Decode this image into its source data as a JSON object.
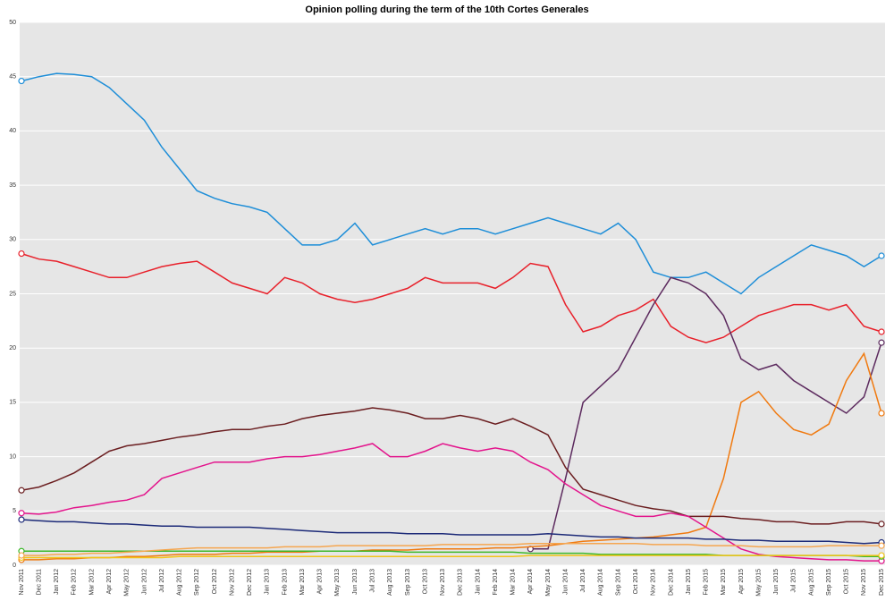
{
  "chart_data": {
    "type": "line",
    "title": "Opinion polling during the term of the 10th Cortes Generales",
    "categories": [
      "Nov 2011",
      "Dec 2011",
      "Jan 2012",
      "Feb 2012",
      "Mar 2012",
      "Apr 2012",
      "May 2012",
      "Jun 2012",
      "Jul 2012",
      "Aug 2012",
      "Sep 2012",
      "Oct 2012",
      "Nov 2012",
      "Dec 2012",
      "Jan 2013",
      "Feb 2013",
      "Mar 2013",
      "Apr 2013",
      "May 2013",
      "Jun 2013",
      "Jul 2013",
      "Aug 2013",
      "Sep 2013",
      "Oct 2013",
      "Nov 2013",
      "Dec 2013",
      "Jan 2014",
      "Feb 2014",
      "Mar 2014",
      "Apr 2014",
      "May 2014",
      "Jun 2014",
      "Jul 2014",
      "Aug 2014",
      "Sep 2014",
      "Oct 2014",
      "Nov 2014",
      "Dec 2014",
      "Jan 2015",
      "Feb 2015",
      "Mar 2015",
      "Apr 2015",
      "May 2015",
      "Jun 2015",
      "Jul 2015",
      "Aug 2015",
      "Sep 2015",
      "Oct 2015",
      "Nov 2015",
      "Dec 2015"
    ],
    "ylim": [
      0,
      50
    ],
    "yticks": [
      0,
      5,
      10,
      15,
      20,
      25,
      30,
      35,
      40,
      45,
      50
    ],
    "grid": true,
    "series": [
      {
        "color": "#1e8ed8",
        "values": [
          44.6,
          45,
          45.3,
          45.2,
          45,
          44,
          42.5,
          41,
          38.5,
          36.5,
          34.5,
          33.8,
          33.3,
          33,
          32.5,
          31,
          29.5,
          29.5,
          30,
          31.5,
          29.5,
          30,
          30.5,
          31,
          30.5,
          31,
          31,
          30.5,
          31,
          31.5,
          32,
          31.5,
          31,
          30.5,
          31.5,
          30,
          27,
          26.5,
          26.5,
          27,
          26,
          25,
          26.5,
          27.5,
          28.5,
          29.5,
          29,
          28.5,
          27.5,
          28.5
        ]
      },
      {
        "color": "#e8202a",
        "values": [
          28.7,
          28.2,
          28,
          27.5,
          27,
          26.5,
          26.5,
          27,
          27.5,
          27.8,
          28,
          27,
          26,
          25.5,
          25,
          26.5,
          26,
          25,
          24.5,
          24.2,
          24.5,
          25,
          25.5,
          26.5,
          26,
          26,
          26,
          25.5,
          26.5,
          27.8,
          27.5,
          24,
          21.5,
          22,
          23,
          23.5,
          24.5,
          22,
          21,
          20.5,
          21,
          22,
          23,
          23.5,
          24,
          24,
          23.5,
          24,
          22,
          21.5
        ]
      },
      {
        "color": "#5c2a5e",
        "values": [
          null,
          null,
          null,
          null,
          null,
          null,
          null,
          null,
          null,
          null,
          null,
          null,
          null,
          null,
          null,
          null,
          null,
          null,
          null,
          null,
          null,
          null,
          null,
          null,
          null,
          null,
          null,
          null,
          null,
          1.5,
          1.5,
          8,
          15,
          16.5,
          18,
          21,
          24,
          26.5,
          26,
          25,
          23,
          19,
          18,
          18.5,
          17,
          16,
          15,
          14,
          15.5,
          20.5
        ]
      },
      {
        "color": "#f07a10",
        "values": [
          0.5,
          0.5,
          0.6,
          0.6,
          0.7,
          0.7,
          0.8,
          0.8,
          0.9,
          1,
          1,
          1,
          1.1,
          1.1,
          1.2,
          1.2,
          1.2,
          1.3,
          1.3,
          1.3,
          1.4,
          1.4,
          1.4,
          1.5,
          1.5,
          1.5,
          1.5,
          1.6,
          1.6,
          1.7,
          1.8,
          2,
          2.2,
          2.3,
          2.4,
          2.5,
          2.6,
          2.8,
          3,
          3.5,
          8,
          15,
          16,
          14,
          12.5,
          12,
          13,
          17,
          19.5,
          14
        ]
      },
      {
        "color": "#6b1e20",
        "values": [
          6.9,
          7.2,
          7.8,
          8.5,
          9.5,
          10.5,
          11,
          11.2,
          11.5,
          11.8,
          12,
          12.3,
          12.5,
          12.5,
          12.8,
          13,
          13.5,
          13.8,
          14,
          14.2,
          14.5,
          14.3,
          14,
          13.5,
          13.5,
          13.8,
          13.5,
          13,
          13.5,
          12.8,
          12,
          9,
          7,
          6.5,
          6,
          5.5,
          5.2,
          5,
          4.5,
          4.5,
          4.5,
          4.3,
          4.2,
          4,
          4,
          3.8,
          3.8,
          4,
          4,
          3.8
        ]
      },
      {
        "color": "#e3148c",
        "values": [
          4.8,
          4.7,
          4.9,
          5.3,
          5.5,
          5.8,
          6,
          6.5,
          8,
          8.5,
          9,
          9.5,
          9.5,
          9.5,
          9.8,
          10,
          10,
          10.2,
          10.5,
          10.8,
          11.2,
          10,
          10,
          10.5,
          11.2,
          10.8,
          10.5,
          10.8,
          10.5,
          9.5,
          8.8,
          7.5,
          6.5,
          5.5,
          5,
          4.5,
          4.5,
          4.8,
          4.5,
          3.5,
          2.5,
          1.5,
          1,
          0.8,
          0.7,
          0.6,
          0.5,
          0.5,
          0.4,
          0.4
        ]
      },
      {
        "color": "#1c2a78",
        "values": [
          4.2,
          4.1,
          4,
          4,
          3.9,
          3.8,
          3.8,
          3.7,
          3.6,
          3.6,
          3.5,
          3.5,
          3.5,
          3.5,
          3.4,
          3.3,
          3.2,
          3.1,
          3,
          3,
          3,
          3,
          2.9,
          2.9,
          2.9,
          2.8,
          2.8,
          2.8,
          2.8,
          2.8,
          2.9,
          2.8,
          2.7,
          2.6,
          2.6,
          2.5,
          2.5,
          2.5,
          2.5,
          2.4,
          2.4,
          2.3,
          2.3,
          2.2,
          2.2,
          2.2,
          2.2,
          2.1,
          2,
          2.1
        ]
      },
      {
        "color": "#3cb82a",
        "values": [
          1.3,
          1.3,
          1.3,
          1.3,
          1.3,
          1.3,
          1.3,
          1.3,
          1.3,
          1.3,
          1.3,
          1.3,
          1.3,
          1.3,
          1.3,
          1.3,
          1.3,
          1.3,
          1.3,
          1.3,
          1.3,
          1.3,
          1.2,
          1.2,
          1.2,
          1.2,
          1.2,
          1.2,
          1.2,
          1.1,
          1.1,
          1.1,
          1.1,
          1,
          1,
          1,
          1,
          1,
          1,
          1,
          0.9,
          0.9,
          0.9,
          0.9,
          0.9,
          0.9,
          0.9,
          0.9,
          0.8,
          0.8
        ]
      },
      {
        "color": "#f2c418",
        "values": [
          0.7,
          0.7,
          0.7,
          0.7,
          0.7,
          0.7,
          0.7,
          0.7,
          0.7,
          0.8,
          0.8,
          0.8,
          0.8,
          0.8,
          0.8,
          0.8,
          0.8,
          0.8,
          0.8,
          0.8,
          0.8,
          0.8,
          0.8,
          0.8,
          0.8,
          0.8,
          0.8,
          0.8,
          0.8,
          0.9,
          0.9,
          0.9,
          0.9,
          0.9,
          0.9,
          0.9,
          0.9,
          0.9,
          0.9,
          0.9,
          0.9,
          0.9,
          0.9,
          0.9,
          0.9,
          0.9,
          0.9,
          0.9,
          0.9,
          0.9
        ]
      },
      {
        "color": "#f5a650",
        "values": [
          0.9,
          0.9,
          1,
          1,
          1.1,
          1.1,
          1.2,
          1.3,
          1.4,
          1.5,
          1.6,
          1.6,
          1.6,
          1.6,
          1.6,
          1.7,
          1.7,
          1.7,
          1.8,
          1.8,
          1.8,
          1.8,
          1.8,
          1.8,
          1.9,
          1.9,
          1.9,
          1.9,
          1.9,
          2,
          2,
          2,
          2,
          2,
          2,
          2,
          1.9,
          1.9,
          1.9,
          1.8,
          1.8,
          1.8,
          1.7,
          1.7,
          1.7,
          1.7,
          1.8,
          1.8,
          1.8,
          1.8
        ]
      }
    ]
  }
}
